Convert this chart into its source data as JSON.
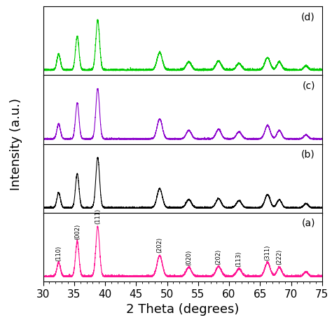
{
  "x_min": 30,
  "x_max": 75,
  "xlabel": "2 Theta (degrees)",
  "ylabel": "Intensity (a.u.)",
  "xlabel_fontsize": 13,
  "ylabel_fontsize": 13,
  "tick_fontsize": 11,
  "colors": {
    "a": "#FF1493",
    "b": "#000000",
    "c": "#8B00CC",
    "d": "#00CC00"
  },
  "labels": [
    "(a)",
    "(b)",
    "(c)",
    "(d)"
  ],
  "miller_indices": [
    "(110)",
    "(002)",
    "(111)",
    "(202)",
    "(020)",
    "(202)",
    "(113)",
    "(311)",
    "(222)"
  ],
  "miller_positions": [
    32.5,
    35.5,
    38.8,
    48.8,
    53.5,
    58.3,
    61.6,
    66.2,
    68.1
  ],
  "peak_centers": [
    32.5,
    35.5,
    38.8,
    48.8,
    53.5,
    58.3,
    61.6,
    66.2,
    68.1,
    72.4
  ],
  "peak_amps_a": [
    0.28,
    0.7,
    1.0,
    0.42,
    0.18,
    0.2,
    0.15,
    0.28,
    0.18,
    0.09
  ],
  "peak_amps_b": [
    0.3,
    0.68,
    1.0,
    0.38,
    0.16,
    0.18,
    0.14,
    0.26,
    0.16,
    0.08
  ],
  "peak_amps_c": [
    0.3,
    0.72,
    1.0,
    0.4,
    0.17,
    0.19,
    0.14,
    0.27,
    0.17,
    0.08
  ],
  "peak_amps_d": [
    0.32,
    0.68,
    1.0,
    0.35,
    0.16,
    0.18,
    0.13,
    0.25,
    0.16,
    0.08
  ],
  "peak_widths": [
    0.28,
    0.28,
    0.3,
    0.42,
    0.42,
    0.42,
    0.42,
    0.42,
    0.38,
    0.35
  ],
  "noise_seeds": [
    1,
    2,
    3,
    4
  ],
  "noise_levels": [
    0.015,
    0.01,
    0.01,
    0.015
  ],
  "baseline": 0.04
}
